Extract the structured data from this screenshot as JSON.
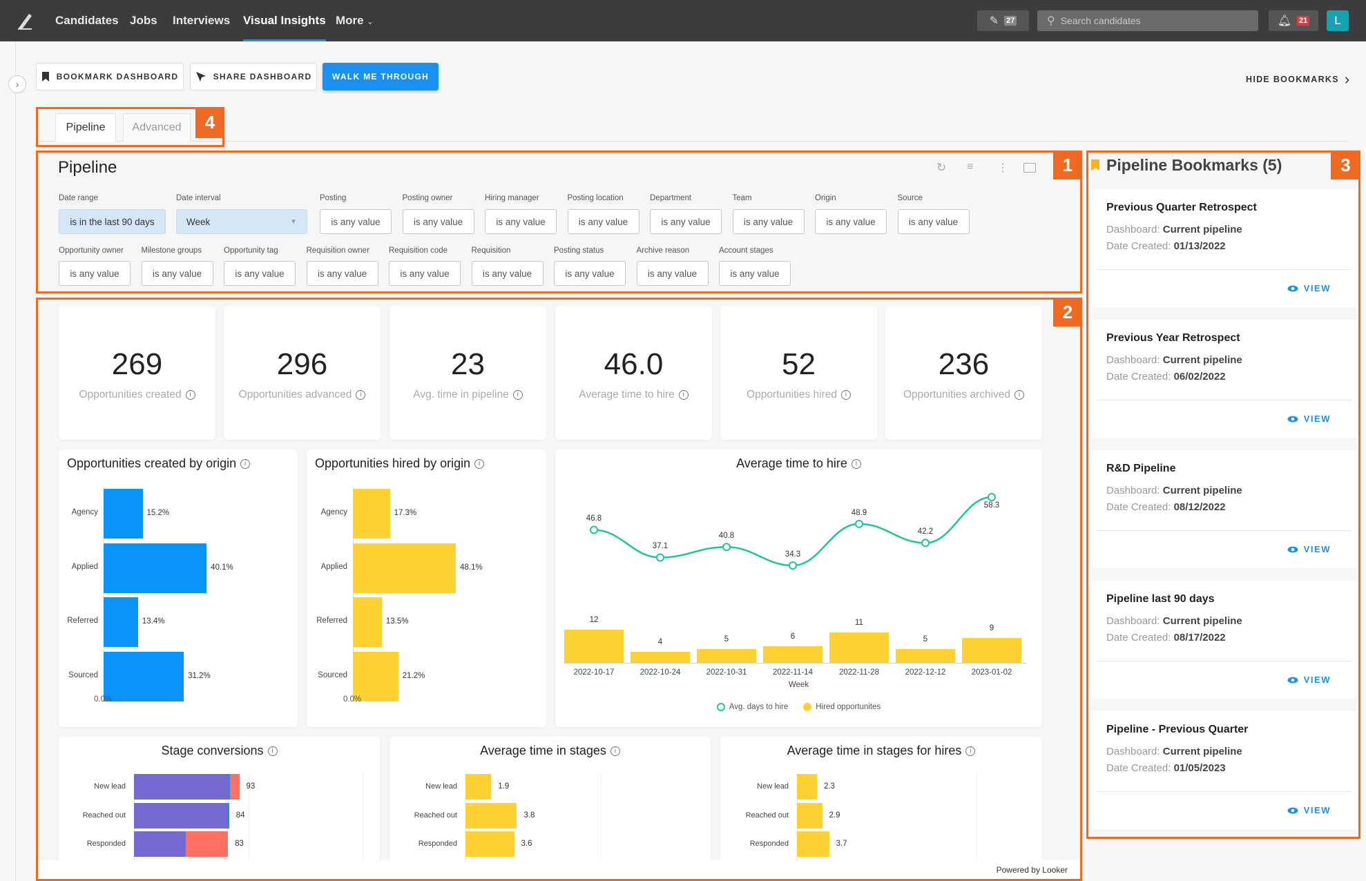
{
  "nav": {
    "items": [
      "Candidates",
      "Jobs",
      "Interviews",
      "Visual Insights",
      "More"
    ],
    "active": "Visual Insights",
    "edit_count": "27",
    "search_placeholder": "Search candidates",
    "notif_count": "21",
    "avatar": "L"
  },
  "toolbar": {
    "bookmark": "BOOKMARK DASHBOARD",
    "share": "SHARE DASHBOARD",
    "walk": "WALK ME THROUGH",
    "hide_bookmarks": "HIDE BOOKMARKS"
  },
  "tabs": [
    "Pipeline",
    "Advanced"
  ],
  "annotations": [
    "1",
    "2",
    "3",
    "4"
  ],
  "dashboard": {
    "title": "Pipeline",
    "filters_row1": [
      {
        "label": "Date range",
        "value": "is in the last 90 days"
      },
      {
        "label": "Date interval",
        "value": "Week"
      },
      {
        "label": "Posting",
        "value": "is any value"
      },
      {
        "label": "Posting owner",
        "value": "is any value"
      },
      {
        "label": "Hiring manager",
        "value": "is any value"
      },
      {
        "label": "Posting location",
        "value": "is any value"
      },
      {
        "label": "Department",
        "value": "is any value"
      },
      {
        "label": "Team",
        "value": "is any value"
      },
      {
        "label": "Origin",
        "value": "is any value"
      },
      {
        "label": "Source",
        "value": "is any value"
      }
    ],
    "filters_row2": [
      {
        "label": "Opportunity owner",
        "value": "is any value"
      },
      {
        "label": "Milestone groups",
        "value": "is any value"
      },
      {
        "label": "Opportunity tag",
        "value": "is any value"
      },
      {
        "label": "Requisition owner",
        "value": "is any value"
      },
      {
        "label": "Requisition code",
        "value": "is any value"
      },
      {
        "label": "Requisition",
        "value": "is any value"
      },
      {
        "label": "Posting status",
        "value": "is any value"
      },
      {
        "label": "Archive reason",
        "value": "is any value"
      },
      {
        "label": "Account stages",
        "value": "is any value"
      }
    ],
    "kpis": [
      {
        "value": "269",
        "label": "Opportunities created"
      },
      {
        "value": "296",
        "label": "Opportunities advanced"
      },
      {
        "value": "23",
        "label": "Avg. time in pipeline"
      },
      {
        "value": "46.0",
        "label": "Average time to hire"
      },
      {
        "value": "52",
        "label": "Opportunities hired"
      },
      {
        "value": "236",
        "label": "Opportunities archived"
      }
    ],
    "footer": "Powered by Looker"
  },
  "colors": {
    "blue": "#0894f8",
    "yellow": "#fed232",
    "teal": "#1cc797",
    "purple": "#7469cf",
    "red": "#fd7062",
    "orange": "#ee6a22"
  },
  "chart_data": [
    {
      "type": "bar",
      "title": "Opportunities created by origin",
      "categories": [
        "Agency",
        "Applied",
        "Referred",
        "Sourced"
      ],
      "values": [
        15.2,
        40.1,
        13.4,
        31.2
      ],
      "labels": [
        "15.2%",
        "40.1%",
        "13.4%",
        "31.2%"
      ],
      "xtick": "0.0%",
      "color": "#0894f8"
    },
    {
      "type": "bar",
      "title": "Opportunities hired by origin",
      "categories": [
        "Agency",
        "Applied",
        "Referred",
        "Sourced"
      ],
      "values": [
        17.3,
        48.1,
        13.5,
        21.2
      ],
      "labels": [
        "17.3%",
        "48.1%",
        "13.5%",
        "21.2%"
      ],
      "xtick": "0.0%",
      "color": "#fed232"
    },
    {
      "type": "line",
      "title": "Average time to hire",
      "xlabel": "Week",
      "categories": [
        "2022-10-17",
        "2022-10-24",
        "2022-10-31",
        "2022-11-14",
        "2022-11-28",
        "2022-12-12",
        "2023-01-02"
      ],
      "series": [
        {
          "name": "Avg. days to hire",
          "type": "line",
          "values": [
            46.8,
            37.1,
            40.8,
            34.3,
            48.9,
            42.2,
            58.3
          ]
        },
        {
          "name": "Hired opportunites",
          "type": "bar",
          "values": [
            12,
            4,
            5,
            6,
            11,
            5,
            9
          ]
        }
      ]
    },
    {
      "type": "bar",
      "title": "Stage conversions",
      "categories": [
        "New lead",
        "Reached out",
        "Responded"
      ],
      "values": [
        93,
        84,
        83
      ],
      "segments": [
        [
          0.9,
          0.01,
          0.09
        ],
        [
          0.985,
          0.015,
          0
        ],
        [
          0.55,
          0,
          0.45
        ]
      ],
      "segment_colors": [
        "#7469cf",
        "#0894f8",
        "#fd7062"
      ]
    },
    {
      "type": "bar",
      "title": "Average time in stages",
      "categories": [
        "New lead",
        "Reached out",
        "Responded"
      ],
      "values": [
        1.9,
        3.8,
        3.6
      ],
      "color": "#fed232"
    },
    {
      "type": "bar",
      "title": "Average time in stages for hires",
      "categories": [
        "New lead",
        "Reached out",
        "Responded"
      ],
      "values": [
        2.3,
        2.9,
        3.7
      ],
      "color": "#fed232"
    }
  ],
  "bookmarks": {
    "title": "Pipeline Bookmarks (5)",
    "dashboard_label": "Dashboard:",
    "date_label": "Date Created:",
    "view_label": "VIEW",
    "items": [
      {
        "name": "Previous Quarter Retrospect",
        "dashboard": "Current pipeline",
        "date": "01/13/2022"
      },
      {
        "name": "Previous Year Retrospect",
        "dashboard": "Current pipeline",
        "date": "06/02/2022"
      },
      {
        "name": "R&D Pipeline",
        "dashboard": "Current pipeline",
        "date": "08/12/2022"
      },
      {
        "name": "Pipeline last 90 days",
        "dashboard": "Current pipeline",
        "date": "08/17/2022"
      },
      {
        "name": "Pipeline - Previous Quarter",
        "dashboard": "Current pipeline",
        "date": "01/05/2023"
      }
    ]
  }
}
